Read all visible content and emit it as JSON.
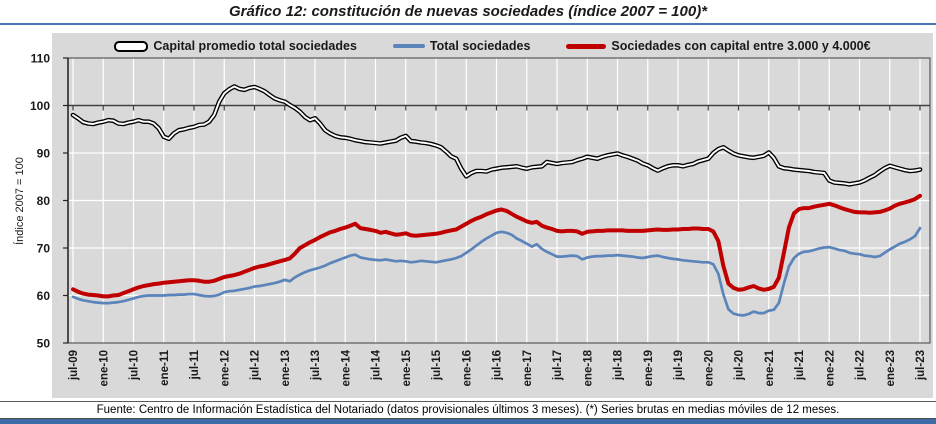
{
  "title": "Gráfico 12: constitución de nuevas sociedades (índice 2007 = 100)*",
  "footer": "Fuente: Centro de Información Estadística del Notariado (datos provisionales últimos 3 meses). (*) Series brutas en medias móviles de 12 meses.",
  "y_axis": {
    "title": "Índice 2007 = 100",
    "ticks": [
      110,
      100,
      90,
      80,
      70,
      60,
      50
    ]
  },
  "legend": [
    {
      "label": "Capital promedio total sociedades",
      "color": "#000000",
      "style": "double-line"
    },
    {
      "label": "Total sociedades",
      "color": "#5b84ba",
      "style": "line"
    },
    {
      "label": "Sociedades con capital entre 3.000 y 4.000€",
      "color": "#c00000",
      "style": "thick-line"
    }
  ],
  "colors": {
    "plot_background": "#d9d9d9",
    "gridline": "#ffffff",
    "plot_border": "#595959",
    "axis_line": "#404040",
    "series_black": "#000000",
    "series_blue": "#5b84ba",
    "series_red": "#c00000",
    "title_rule_blue": "#4a77b5",
    "bottom_bar_blue": "#3c6ba8"
  },
  "chart_data": {
    "type": "line",
    "title": "Gráfico 12: constitución de nuevas sociedades (índice 2007 = 100)*",
    "ylabel": "Índice 2007 = 100",
    "ylim": [
      50,
      110
    ],
    "y_ticks": [
      50,
      60,
      70,
      80,
      90,
      100,
      110
    ],
    "reference_line_y": 100,
    "grid": true,
    "legend_position": "top",
    "x_start": "2009-07",
    "x_end": "2023-07",
    "x_step_months": 1,
    "x_tick_labels": [
      "jul-09",
      "ene-10",
      "jul-10",
      "ene-11",
      "jul-11",
      "ene-12",
      "jul-12",
      "ene-13",
      "jul-13",
      "ene-14",
      "jul-14",
      "ene-15",
      "jul-15",
      "ene-16",
      "jul-16",
      "ene-17",
      "jul-17",
      "ene-18",
      "jul-18",
      "ene-19",
      "jul-19",
      "ene-20",
      "jul-20",
      "ene-21",
      "jul-21",
      "ene-22",
      "jul-22",
      "ene-23",
      "jul-23"
    ],
    "series": [
      {
        "name": "Capital promedio total sociedades",
        "color": "#000000",
        "style": "double",
        "values": [
          98.0,
          97.3,
          96.5,
          96.2,
          96.1,
          96.4,
          96.6,
          96.9,
          96.8,
          96.2,
          96.1,
          96.4,
          96.6,
          96.9,
          96.6,
          96.6,
          96.2,
          95.2,
          93.4,
          93.0,
          94.1,
          94.8,
          95.0,
          95.3,
          95.5,
          95.9,
          96.0,
          96.6,
          98.0,
          100.8,
          102.6,
          103.4,
          104.0,
          103.5,
          103.3,
          103.7,
          103.9,
          103.5,
          103.0,
          102.2,
          101.5,
          101.1,
          100.8,
          100.1,
          99.5,
          98.7,
          97.6,
          96.9,
          97.3,
          96.2,
          94.8,
          94.1,
          93.6,
          93.3,
          93.2,
          93.0,
          92.7,
          92.5,
          92.3,
          92.2,
          92.1,
          92.0,
          92.2,
          92.4,
          92.6,
          93.2,
          93.6,
          92.5,
          92.4,
          92.2,
          92.1,
          91.9,
          91.6,
          91.2,
          90.3,
          89.3,
          88.8,
          86.7,
          85.1,
          85.8,
          86.2,
          86.2,
          86.1,
          86.5,
          86.7,
          86.9,
          87.0,
          87.1,
          87.2,
          86.9,
          86.7,
          87.0,
          87.1,
          87.2,
          88.1,
          87.9,
          87.7,
          87.9,
          88.0,
          88.1,
          88.5,
          88.8,
          89.2,
          89.0,
          88.8,
          89.2,
          89.5,
          89.7,
          89.9,
          89.5,
          89.2,
          88.8,
          88.4,
          87.8,
          87.4,
          86.8,
          86.3,
          86.8,
          87.2,
          87.4,
          87.4,
          87.2,
          87.5,
          87.7,
          88.2,
          88.5,
          88.8,
          90.0,
          90.8,
          91.2,
          90.5,
          89.9,
          89.5,
          89.3,
          89.1,
          89.0,
          89.2,
          89.4,
          90.1,
          89.0,
          87.2,
          86.8,
          86.7,
          86.5,
          86.4,
          86.3,
          86.2,
          86.0,
          85.9,
          85.8,
          84.2,
          83.8,
          83.7,
          83.6,
          83.4,
          83.6,
          83.8,
          84.2,
          84.8,
          85.3,
          86.1,
          86.8,
          87.3,
          87.0,
          86.7,
          86.4,
          86.2,
          86.3,
          86.5
        ]
      },
      {
        "name": "Total sociedades",
        "color": "#5b84ba",
        "style": "line",
        "values": [
          59.7,
          59.3,
          59.0,
          58.8,
          58.6,
          58.5,
          58.4,
          58.4,
          58.5,
          58.6,
          58.8,
          59.1,
          59.4,
          59.7,
          59.9,
          60.0,
          60.0,
          60.0,
          60.0,
          60.1,
          60.1,
          60.2,
          60.2,
          60.3,
          60.3,
          60.1,
          59.9,
          59.8,
          59.9,
          60.2,
          60.7,
          60.9,
          61.0,
          61.2,
          61.4,
          61.6,
          61.9,
          62.0,
          62.2,
          62.4,
          62.6,
          62.9,
          63.3,
          63.0,
          63.8,
          64.4,
          64.9,
          65.3,
          65.6,
          65.9,
          66.3,
          66.8,
          67.2,
          67.6,
          68.0,
          68.4,
          68.6,
          68.0,
          67.8,
          67.6,
          67.5,
          67.4,
          67.6,
          67.4,
          67.2,
          67.3,
          67.2,
          67.0,
          67.1,
          67.3,
          67.2,
          67.1,
          67.0,
          67.2,
          67.4,
          67.6,
          67.9,
          68.3,
          69.0,
          69.7,
          70.5,
          71.3,
          72.0,
          72.6,
          73.2,
          73.4,
          73.2,
          72.8,
          72.0,
          71.5,
          70.9,
          70.3,
          70.8,
          69.8,
          69.2,
          68.7,
          68.2,
          68.2,
          68.3,
          68.4,
          68.3,
          67.6,
          68.0,
          68.2,
          68.3,
          68.3,
          68.4,
          68.4,
          68.5,
          68.4,
          68.3,
          68.2,
          68.0,
          67.9,
          68.1,
          68.3,
          68.4,
          68.1,
          67.9,
          67.7,
          67.6,
          67.4,
          67.3,
          67.2,
          67.1,
          67.0,
          67.0,
          66.6,
          64.6,
          60.2,
          57.1,
          56.2,
          55.9,
          55.8,
          56.1,
          56.6,
          56.3,
          56.3,
          56.8,
          57.0,
          58.4,
          62.5,
          66.1,
          67.9,
          68.8,
          69.2,
          69.3,
          69.6,
          69.9,
          70.1,
          70.2,
          69.9,
          69.6,
          69.4,
          69.0,
          68.8,
          68.7,
          68.4,
          68.3,
          68.1,
          68.3,
          69.0,
          69.7,
          70.3,
          70.9,
          71.3,
          71.8,
          72.5,
          74.2
        ]
      },
      {
        "name": "Sociedades con capital entre 3.000 y 4.000€",
        "color": "#c00000",
        "style": "thick",
        "values": [
          61.3,
          60.8,
          60.4,
          60.2,
          60.1,
          60.0,
          59.8,
          59.8,
          60.0,
          60.1,
          60.5,
          60.9,
          61.3,
          61.7,
          62.0,
          62.2,
          62.4,
          62.5,
          62.7,
          62.8,
          62.9,
          63.0,
          63.1,
          63.2,
          63.2,
          63.1,
          62.9,
          62.9,
          63.1,
          63.5,
          63.9,
          64.1,
          64.3,
          64.6,
          65.0,
          65.4,
          65.8,
          66.1,
          66.3,
          66.6,
          66.9,
          67.2,
          67.5,
          67.8,
          68.8,
          70.0,
          70.6,
          71.2,
          71.7,
          72.3,
          72.8,
          73.3,
          73.6,
          74.0,
          74.3,
          74.7,
          75.1,
          74.2,
          74.0,
          73.8,
          73.6,
          73.2,
          73.4,
          73.1,
          72.8,
          72.9,
          73.1,
          72.7,
          72.6,
          72.7,
          72.8,
          72.9,
          73.0,
          73.2,
          73.5,
          73.7,
          73.9,
          74.5,
          75.1,
          75.7,
          76.2,
          76.6,
          77.1,
          77.5,
          77.9,
          78.1,
          77.8,
          77.2,
          76.6,
          76.1,
          75.6,
          75.3,
          75.5,
          74.7,
          74.3,
          74.0,
          73.6,
          73.5,
          73.6,
          73.6,
          73.5,
          73.0,
          73.4,
          73.5,
          73.6,
          73.6,
          73.7,
          73.7,
          73.7,
          73.7,
          73.6,
          73.6,
          73.6,
          73.6,
          73.7,
          73.8,
          73.9,
          73.8,
          73.8,
          73.9,
          73.9,
          74.0,
          74.0,
          74.1,
          74.1,
          74.0,
          74.0,
          73.5,
          71.5,
          66.2,
          62.5,
          61.6,
          61.2,
          61.3,
          61.7,
          62.0,
          61.5,
          61.2,
          61.4,
          61.8,
          63.7,
          69.0,
          74.3,
          77.3,
          78.2,
          78.4,
          78.4,
          78.7,
          78.9,
          79.1,
          79.3,
          79.0,
          78.6,
          78.2,
          77.9,
          77.6,
          77.5,
          77.5,
          77.4,
          77.5,
          77.6,
          77.9,
          78.3,
          78.9,
          79.3,
          79.6,
          79.9,
          80.3,
          81.0
        ]
      }
    ]
  }
}
